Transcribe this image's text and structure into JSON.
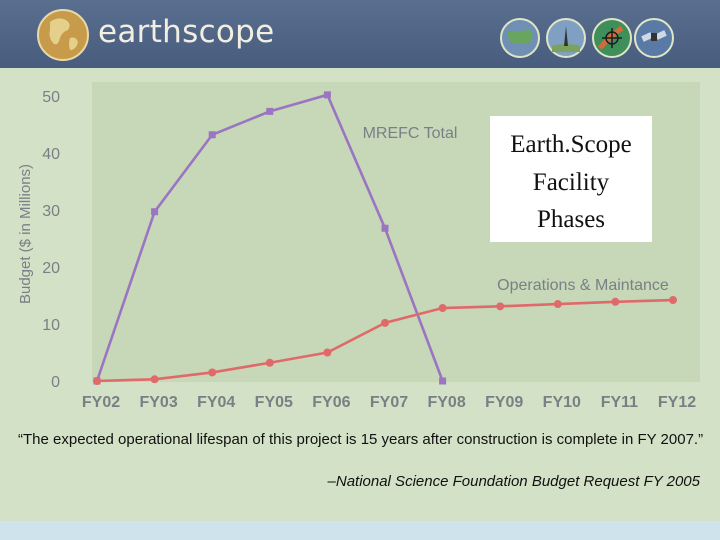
{
  "header": {
    "brand": "earthscope",
    "colors": {
      "bar": "#4f6586",
      "brand_text": "#f2efe2",
      "page_bg": "#d3e2c6"
    },
    "icons": [
      "globe-logo-icon",
      "usa-map-icon",
      "drill-rig-icon",
      "satellite-dish-icon",
      "satellite-icon"
    ]
  },
  "chart_data": {
    "type": "line",
    "ylabel": "Budget ($ in Millions)",
    "ylim": [
      0,
      50
    ],
    "yticks": [
      0,
      10,
      20,
      30,
      40,
      50
    ],
    "categories": [
      "FY02",
      "FY03",
      "FY04",
      "FY05",
      "FY06",
      "FY07",
      "FY08",
      "FY09",
      "FY10",
      "FY11",
      "FY12"
    ],
    "series": [
      {
        "name": "MREFC Total",
        "color": "#9b74c2",
        "values": [
          0,
          29.7,
          43.2,
          47.3,
          50.2,
          26.8,
          0,
          null,
          null,
          null,
          null
        ]
      },
      {
        "name": "Operations & Maintance",
        "color": "#e0696a",
        "values": [
          0,
          0.3,
          1.5,
          3.2,
          5.0,
          10.2,
          12.8,
          13.1,
          13.5,
          13.9,
          14.2
        ]
      }
    ],
    "grid": false,
    "annotation": [
      "Earth.Scope",
      "Facility",
      "Phases"
    ]
  },
  "caption": {
    "quote": "“The expected operational lifespan of this project is 15 years after construction is complete in FY 2007.”",
    "citation": "–National Science Foundation Budget Request FY 2005"
  }
}
